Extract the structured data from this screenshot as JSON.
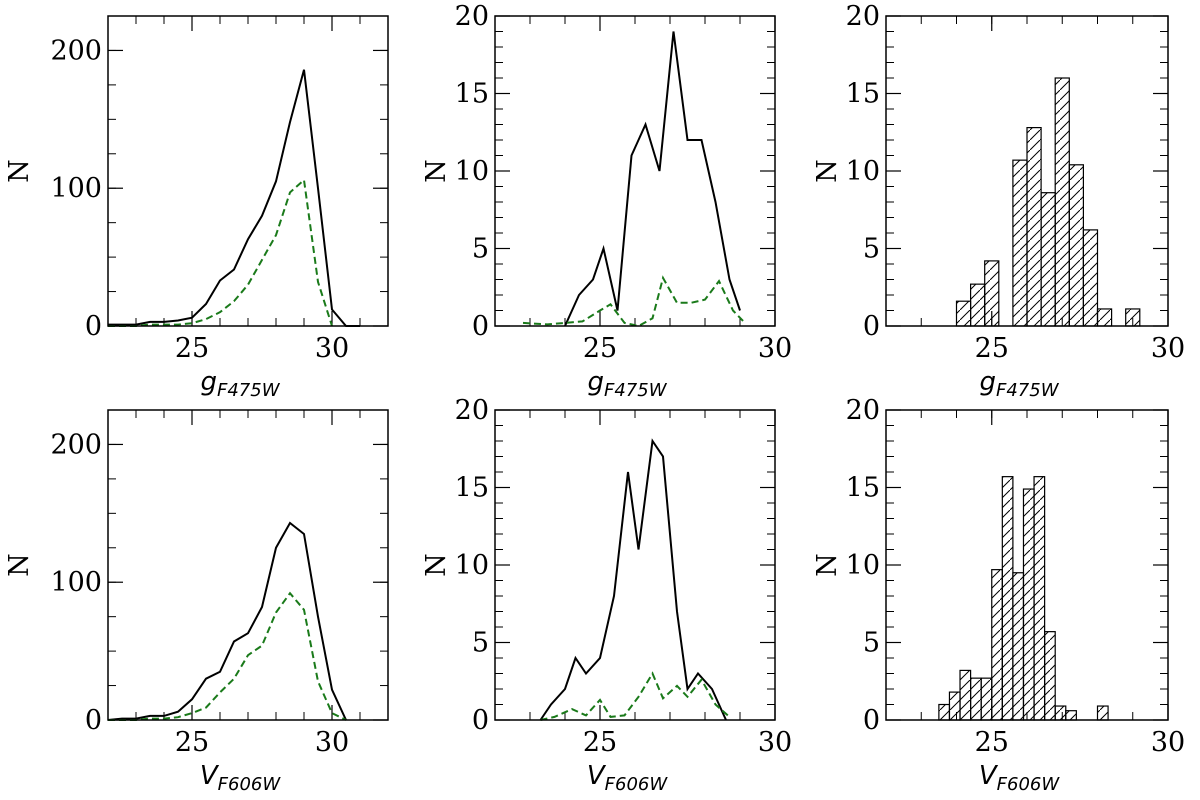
{
  "colors": {
    "solid": "#000000",
    "dashed": "#1a7a1a",
    "bar_fill": "#ffffff",
    "bar_edge": "#000000"
  },
  "chart_data": [
    {
      "type": "line",
      "xlim": [
        22,
        32
      ],
      "ylim": [
        0,
        225
      ],
      "xticks": [
        25,
        30
      ],
      "yticks": [
        0,
        100,
        200
      ],
      "xticks_minor": [
        22,
        23,
        24,
        25,
        26,
        27,
        28,
        29,
        30,
        31,
        32
      ],
      "yticks_minor": [
        0,
        25,
        50,
        75,
        100,
        125,
        150,
        175,
        200,
        225
      ],
      "xlabel": {
        "main": "g",
        "sub": "F475W"
      },
      "ylabel": "N",
      "series": [
        {
          "name": "solid",
          "style": "solid",
          "x": [
            22,
            22.5,
            23,
            23.5,
            24,
            24.5,
            25,
            25.5,
            26,
            26.5,
            27,
            27.5,
            28,
            28.5,
            29,
            29.5,
            30,
            30.5,
            31
          ],
          "y": [
            1,
            1,
            1,
            3,
            3,
            4,
            6,
            16,
            33,
            41,
            63,
            80,
            105,
            148,
            186,
            100,
            12,
            0,
            0
          ]
        },
        {
          "name": "dashed",
          "style": "dashed",
          "x": [
            22,
            22.5,
            23,
            23.5,
            24,
            24.5,
            25,
            25.5,
            26,
            26.5,
            27,
            27.5,
            28,
            28.5,
            29,
            29.5,
            30
          ],
          "y": [
            0,
            0,
            0,
            1,
            1,
            1,
            2,
            5,
            10,
            18,
            30,
            48,
            66,
            97,
            106,
            32,
            0
          ]
        }
      ]
    },
    {
      "type": "line",
      "xlim": [
        22,
        30
      ],
      "ylim": [
        0,
        20
      ],
      "xticks": [
        25,
        30
      ],
      "yticks": [
        0,
        5,
        10,
        15,
        20
      ],
      "xticks_minor": [
        22,
        23,
        24,
        25,
        26,
        27,
        28,
        29,
        30
      ],
      "yticks_minor": [
        0,
        1,
        2,
        3,
        4,
        5,
        6,
        7,
        8,
        9,
        10,
        11,
        12,
        13,
        14,
        15,
        16,
        17,
        18,
        19,
        20
      ],
      "xlabel": {
        "main": "g",
        "sub": "F475W"
      },
      "ylabel": "N",
      "series": [
        {
          "name": "solid",
          "style": "solid",
          "x": [
            24,
            24.4,
            24.8,
            25.1,
            25.5,
            25.9,
            26.3,
            26.7,
            27.1,
            27.5,
            27.9,
            28.3,
            28.7,
            29
          ],
          "y": [
            0,
            2,
            3,
            5,
            1,
            11,
            13,
            10,
            19,
            12,
            12,
            8,
            3,
            1
          ]
        },
        {
          "name": "dashed",
          "style": "dashed",
          "x": [
            22.8,
            23.5,
            24,
            24.5,
            25,
            25.3,
            25.7,
            26.1,
            26.5,
            26.8,
            27.2,
            27.6,
            28,
            28.4,
            28.8,
            29.1
          ],
          "y": [
            0.2,
            0.1,
            0.2,
            0.3,
            1,
            1.4,
            0.2,
            0,
            0.5,
            3.1,
            1.5,
            1.5,
            1.7,
            2.9,
            1,
            0.3
          ]
        }
      ]
    },
    {
      "type": "bar",
      "xlim": [
        22,
        30
      ],
      "ylim": [
        0,
        20
      ],
      "xticks": [
        25,
        30
      ],
      "yticks": [
        0,
        5,
        10,
        15,
        20
      ],
      "xticks_minor": [
        22,
        23,
        24,
        25,
        26,
        27,
        28,
        29,
        30
      ],
      "yticks_minor": [
        0,
        1,
        2,
        3,
        4,
        5,
        6,
        7,
        8,
        9,
        10,
        11,
        12,
        13,
        14,
        15,
        16,
        17,
        18,
        19,
        20
      ],
      "xlabel": {
        "main": "g",
        "sub": "F475W"
      },
      "ylabel": "N",
      "bin_width": 0.4,
      "bin_left": [
        22.4,
        22.8,
        23.2,
        23.6,
        24.0,
        24.4,
        24.8,
        25.2,
        25.6,
        26.0,
        26.4,
        26.8,
        27.2,
        27.6,
        28.0,
        28.4,
        28.8
      ],
      "values": [
        0,
        0,
        0,
        0,
        1.6,
        2.7,
        4.2,
        0,
        10.7,
        12.8,
        8.6,
        16,
        10.4,
        6.2,
        1.1,
        0,
        1.1
      ]
    },
    {
      "type": "line",
      "xlim": [
        22,
        32
      ],
      "ylim": [
        0,
        225
      ],
      "xticks": [
        25,
        30
      ],
      "yticks": [
        0,
        100,
        200
      ],
      "xticks_minor": [
        22,
        23,
        24,
        25,
        26,
        27,
        28,
        29,
        30,
        31,
        32
      ],
      "yticks_minor": [
        0,
        25,
        50,
        75,
        100,
        125,
        150,
        175,
        200,
        225
      ],
      "xlabel": {
        "main": "V",
        "sub": "F606W"
      },
      "ylabel": "N",
      "series": [
        {
          "name": "solid",
          "style": "solid",
          "x": [
            22,
            22.5,
            23,
            23.5,
            24,
            24.5,
            25,
            25.5,
            26,
            26.5,
            27,
            27.5,
            28,
            28.5,
            29,
            29.5,
            30,
            30.5
          ],
          "y": [
            0,
            1,
            1,
            3,
            3,
            6,
            15,
            30,
            35,
            57,
            63,
            82,
            125,
            143,
            135,
            75,
            22,
            0
          ]
        },
        {
          "name": "dashed",
          "style": "dashed",
          "x": [
            22,
            22.5,
            23,
            23.5,
            24,
            24.5,
            25,
            25.5,
            26,
            26.5,
            27,
            27.5,
            28,
            28.5,
            29,
            29.5,
            30,
            30.5
          ],
          "y": [
            0,
            0,
            0,
            1,
            1,
            2,
            5,
            9,
            20,
            30,
            47,
            54,
            78,
            92,
            80,
            28,
            5,
            0
          ]
        }
      ]
    },
    {
      "type": "line",
      "xlim": [
        22,
        30
      ],
      "ylim": [
        0,
        20
      ],
      "xticks": [
        25,
        30
      ],
      "yticks": [
        0,
        5,
        10,
        15,
        20
      ],
      "xticks_minor": [
        22,
        23,
        24,
        25,
        26,
        27,
        28,
        29,
        30
      ],
      "yticks_minor": [
        0,
        1,
        2,
        3,
        4,
        5,
        6,
        7,
        8,
        9,
        10,
        11,
        12,
        13,
        14,
        15,
        16,
        17,
        18,
        19,
        20
      ],
      "xlabel": {
        "main": "V",
        "sub": "F606W"
      },
      "ylabel": "N",
      "series": [
        {
          "name": "solid",
          "style": "solid",
          "x": [
            23.3,
            23.6,
            24,
            24.3,
            24.6,
            25,
            25.4,
            25.8,
            26.1,
            26.5,
            26.8,
            27.2,
            27.5,
            27.8,
            28.2,
            28.6
          ],
          "y": [
            0,
            1,
            2,
            4,
            3,
            4,
            8,
            16,
            11,
            18,
            17,
            7,
            2,
            3,
            2,
            0
          ]
        },
        {
          "name": "dashed",
          "style": "dashed",
          "x": [
            23.3,
            23.7,
            24.2,
            24.6,
            25,
            25.3,
            25.7,
            26.1,
            26.5,
            26.8,
            27.2,
            27.5,
            27.9,
            28.3,
            28.7
          ],
          "y": [
            0,
            0.2,
            0.7,
            0.3,
            1.3,
            0.2,
            0.3,
            1.5,
            3,
            1.4,
            2.2,
            1.5,
            2.6,
            1,
            0.2
          ]
        }
      ]
    },
    {
      "type": "bar",
      "xlim": [
        22,
        30
      ],
      "ylim": [
        0,
        20
      ],
      "xticks": [
        25,
        30
      ],
      "yticks": [
        0,
        5,
        10,
        15,
        20
      ],
      "xticks_minor": [
        22,
        23,
        24,
        25,
        26,
        27,
        28,
        29,
        30
      ],
      "yticks_minor": [
        0,
        1,
        2,
        3,
        4,
        5,
        6,
        7,
        8,
        9,
        10,
        11,
        12,
        13,
        14,
        15,
        16,
        17,
        18,
        19,
        20
      ],
      "xlabel": {
        "main": "V",
        "sub": "F606W"
      },
      "ylabel": "N",
      "bin_width": 0.3,
      "bin_left": [
        22.6,
        22.9,
        23.2,
        23.5,
        23.8,
        24.1,
        24.4,
        24.7,
        25.0,
        25.3,
        25.6,
        25.9,
        26.2,
        26.5,
        26.8,
        27.1,
        27.4,
        27.7,
        28.0,
        28.3
      ],
      "values": [
        0,
        0,
        0,
        1,
        1.8,
        3.2,
        2.7,
        2.7,
        9.7,
        15.7,
        9.5,
        14.9,
        15.7,
        5.7,
        0.9,
        0.6,
        0,
        0,
        0.9,
        0
      ]
    }
  ]
}
